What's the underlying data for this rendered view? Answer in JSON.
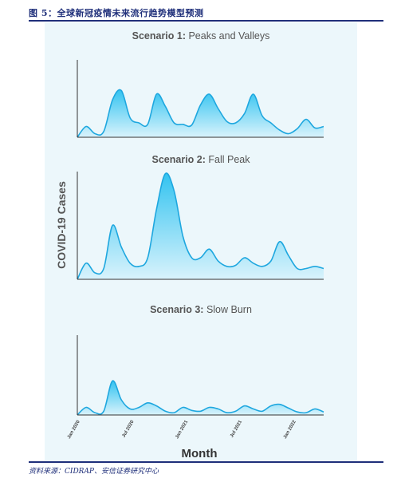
{
  "figure": {
    "title": "图 5：全球新冠疫情未来流行趋势模型预测",
    "source": "资料来源：CIDRAP、安信证券研究中心"
  },
  "colors": {
    "area_top": "#33c3f0",
    "area_bottom": "#d9f3fc",
    "line": "#1ea7df",
    "panel": "#ecf7fb",
    "brand": "#1f2f7a"
  },
  "chart_data": {
    "type": "area",
    "ylabel": "COVID-19 Cases",
    "xlabel": "Month",
    "x_ticks": [
      "Jan 2020",
      "Jul 2020",
      "Jan 2021",
      "Jul 2021",
      "Jan 2022"
    ],
    "ylim": [
      0,
      100
    ],
    "grid": false,
    "panels": [
      {
        "title_bold": "Scenario 1:",
        "title_rest": " Peaks and Valleys",
        "points": [
          [
            0,
            0
          ],
          [
            1,
            15
          ],
          [
            2,
            5
          ],
          [
            3,
            8
          ],
          [
            4,
            52
          ],
          [
            5,
            65
          ],
          [
            6,
            27
          ],
          [
            7,
            20
          ],
          [
            8,
            18
          ],
          [
            9,
            60
          ],
          [
            10,
            43
          ],
          [
            11,
            20
          ],
          [
            12,
            18
          ],
          [
            13,
            17
          ],
          [
            14,
            45
          ],
          [
            15,
            60
          ],
          [
            16,
            40
          ],
          [
            17,
            22
          ],
          [
            18,
            20
          ],
          [
            19,
            33
          ],
          [
            20,
            60
          ],
          [
            21,
            30
          ],
          [
            22,
            20
          ],
          [
            23,
            10
          ],
          [
            24,
            5
          ],
          [
            25,
            12
          ],
          [
            26,
            25
          ],
          [
            27,
            13
          ],
          [
            28,
            15
          ]
        ]
      },
      {
        "title_bold": "Scenario 2:",
        "title_rest": " Fall Peak",
        "points": [
          [
            0,
            0
          ],
          [
            1,
            15
          ],
          [
            2,
            6
          ],
          [
            3,
            10
          ],
          [
            4,
            50
          ],
          [
            5,
            30
          ],
          [
            6,
            15
          ],
          [
            7,
            12
          ],
          [
            8,
            20
          ],
          [
            9,
            65
          ],
          [
            10,
            98
          ],
          [
            11,
            82
          ],
          [
            12,
            40
          ],
          [
            13,
            20
          ],
          [
            14,
            20
          ],
          [
            15,
            28
          ],
          [
            16,
            17
          ],
          [
            17,
            12
          ],
          [
            18,
            13
          ],
          [
            19,
            20
          ],
          [
            20,
            15
          ],
          [
            21,
            12
          ],
          [
            22,
            17
          ],
          [
            23,
            35
          ],
          [
            24,
            22
          ],
          [
            25,
            10
          ],
          [
            26,
            10
          ],
          [
            27,
            12
          ],
          [
            28,
            10
          ]
        ]
      },
      {
        "title_bold": "Scenario 3:",
        "title_rest": " Slow Burn",
        "points": [
          [
            0,
            0
          ],
          [
            1,
            10
          ],
          [
            2,
            3
          ],
          [
            3,
            5
          ],
          [
            4,
            45
          ],
          [
            5,
            20
          ],
          [
            6,
            8
          ],
          [
            7,
            10
          ],
          [
            8,
            16
          ],
          [
            9,
            12
          ],
          [
            10,
            5
          ],
          [
            11,
            3
          ],
          [
            12,
            10
          ],
          [
            13,
            6
          ],
          [
            14,
            5
          ],
          [
            15,
            10
          ],
          [
            16,
            8
          ],
          [
            17,
            3
          ],
          [
            18,
            5
          ],
          [
            19,
            12
          ],
          [
            20,
            8
          ],
          [
            21,
            5
          ],
          [
            22,
            12
          ],
          [
            23,
            14
          ],
          [
            24,
            9
          ],
          [
            25,
            4
          ],
          [
            26,
            3
          ],
          [
            27,
            8
          ],
          [
            28,
            4
          ]
        ]
      }
    ]
  }
}
